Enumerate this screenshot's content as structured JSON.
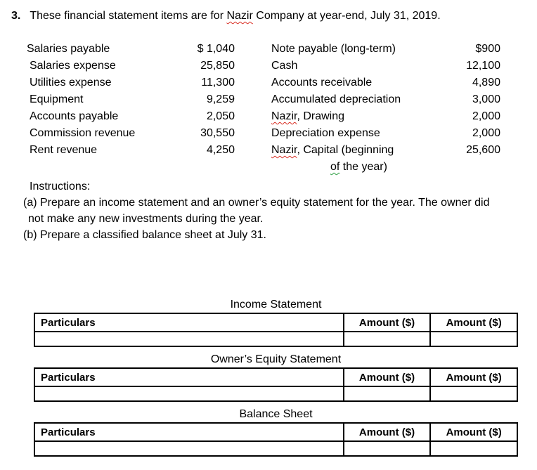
{
  "heading": {
    "number": "3.",
    "pre": "These financial statement items are for ",
    "company": "Nazir",
    "post": " Company at year-end, July 31, 2019."
  },
  "accounts": {
    "left": [
      {
        "label": "Salaries payable",
        "value": "$ 1,040"
      },
      {
        "label": "Salaries expense",
        "value": "25,850"
      },
      {
        "label": "Utilities expense",
        "value": "11,300"
      },
      {
        "label": "Equipment",
        "value": "9,259"
      },
      {
        "label": "Accounts payable",
        "value": "2,050"
      },
      {
        "label": "Commission revenue",
        "value": "30,550"
      },
      {
        "label": "Rent revenue",
        "value": "4,250"
      }
    ],
    "right": [
      {
        "label": "Note payable (long-term)",
        "value": "$900"
      },
      {
        "label": "Cash",
        "value": "12,100"
      },
      {
        "label": "Accounts receivable",
        "value": "4,890"
      },
      {
        "label": "Accumulated depreciation",
        "value": "3,000"
      },
      {
        "word": "Nazir",
        "rest": ", Drawing",
        "value": "2,000"
      },
      {
        "label": "Depreciation expense",
        "value": "2,000"
      },
      {
        "word": "Nazir",
        "rest": ", Capital (beginning",
        "value": "25,600"
      },
      {
        "word2": "of",
        "rest2": " the year)"
      }
    ]
  },
  "instructions": {
    "label": "Instructions:",
    "a_line1": "(a) Prepare an income statement and an owner’s equity statement for the year. The owner did",
    "a_line2": "not make any new investments during the year.",
    "b": "(b) Prepare a classified balance sheet at July 31."
  },
  "tables": [
    {
      "title": "Income Statement",
      "headers": [
        "Particulars",
        "Amount ($)",
        "Amount ($)"
      ]
    },
    {
      "title": "Owner’s Equity Statement",
      "headers": [
        "Particulars",
        "Amount ($)",
        "Amount ($)"
      ]
    },
    {
      "title": "Balance Sheet",
      "headers": [
        "Particulars",
        "Amount ($)",
        "Amount ($)"
      ]
    }
  ],
  "colors": {
    "text": "#000000",
    "background": "#ffffff",
    "spellcheck_squiggle_red": "#d93025",
    "grammar_squiggle_green": "#2a9d3f"
  }
}
